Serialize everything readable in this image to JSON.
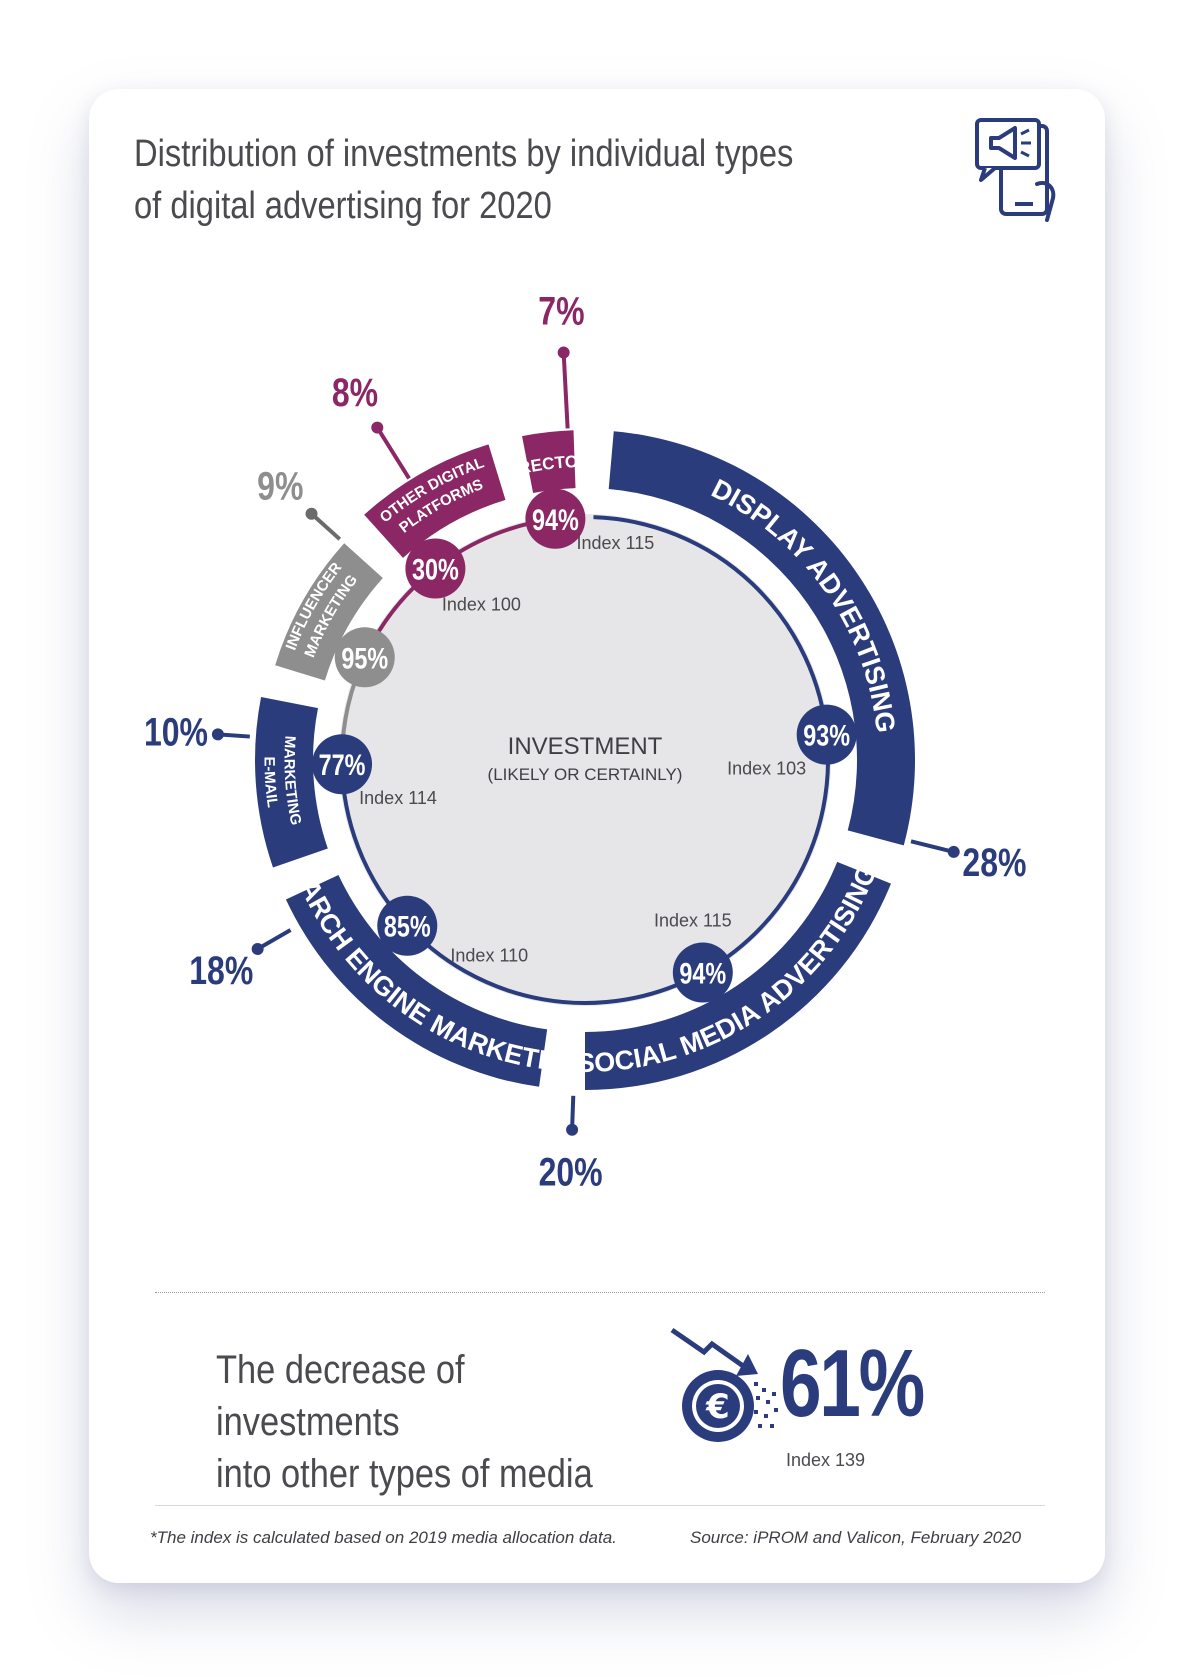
{
  "title": "Distribution of investments by individual types of digital advertising for 2020",
  "colors": {
    "navy": "#2b3c7c",
    "purple": "#8b2765",
    "grey": "#8e8e8e",
    "center": "#e6e6e8"
  },
  "icons": {
    "header": "megaphone-phone-icon",
    "decrease": "euro-falling-arrow-icon"
  },
  "chart_data": {
    "type": "donut",
    "center_title": "INVESTMENT",
    "center_subtitle": "(LIKELY OR CERTAINLY)",
    "segments": [
      {
        "label": "DISPLAY ADVERTISING",
        "share": "28%",
        "investment": "93%",
        "index": "Index 103",
        "color": "navy"
      },
      {
        "label": "SOCIAL MEDIA ADVERTISING",
        "share": "20%",
        "investment": "94%",
        "index": "Index 115",
        "color": "navy"
      },
      {
        "label": "SEARCH ENGINE MARKETING",
        "share": "18%",
        "investment": "85%",
        "index": "Index 110",
        "color": "navy"
      },
      {
        "label_lines": [
          "E-MAIL",
          "MARKETING"
        ],
        "share": "10%",
        "investment": "77%",
        "index": "Index 114",
        "color": "navy"
      },
      {
        "label_lines": [
          "INFLUENCER",
          "MARKETING"
        ],
        "share": "9%",
        "investment": "95%",
        "index": "",
        "color": "grey"
      },
      {
        "label_lines": [
          "OTHER DIGITAL",
          "PLATFORMS"
        ],
        "share": "8%",
        "investment": "30%",
        "index": "Index 100",
        "color": "purple"
      },
      {
        "label": "DIRECTORY",
        "share": "7%",
        "investment": "94%",
        "index": "Index 115",
        "color": "purple"
      }
    ]
  },
  "decrease": {
    "text_line1": "The decrease of investments",
    "text_line2": "into other types of media",
    "value": "61%",
    "index": "Index 139"
  },
  "footnote": "*The index is calculated based on 2019 media allocation data.",
  "source": "Source: iPROM and Valicon, February 2020"
}
